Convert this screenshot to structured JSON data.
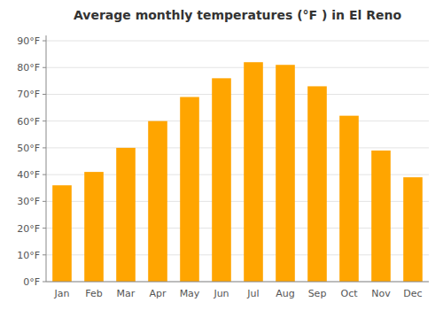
{
  "chart_data": {
    "type": "bar",
    "title": "Average monthly temperatures (°F ) in El Reno",
    "categories": [
      "Jan",
      "Feb",
      "Mar",
      "Apr",
      "May",
      "Jun",
      "Jul",
      "Aug",
      "Sep",
      "Oct",
      "Nov",
      "Dec"
    ],
    "values": [
      36,
      41,
      50,
      60,
      69,
      76,
      82,
      81,
      73,
      62,
      49,
      39
    ],
    "color": "#FFA500",
    "ylim": [
      0,
      92
    ],
    "yticks": [
      {
        "value": 0,
        "label": "0°F"
      },
      {
        "value": 10,
        "label": "10°F"
      },
      {
        "value": 20,
        "label": "20°F"
      },
      {
        "value": 30,
        "label": "30°F"
      },
      {
        "value": 40,
        "label": "40°F"
      },
      {
        "value": 50,
        "label": "50°F"
      },
      {
        "value": 60,
        "label": "60°F"
      },
      {
        "value": 70,
        "label": "70°F"
      },
      {
        "value": 80,
        "label": "80°F"
      },
      {
        "value": 90,
        "label": "90°F"
      }
    ],
    "grid": true
  }
}
